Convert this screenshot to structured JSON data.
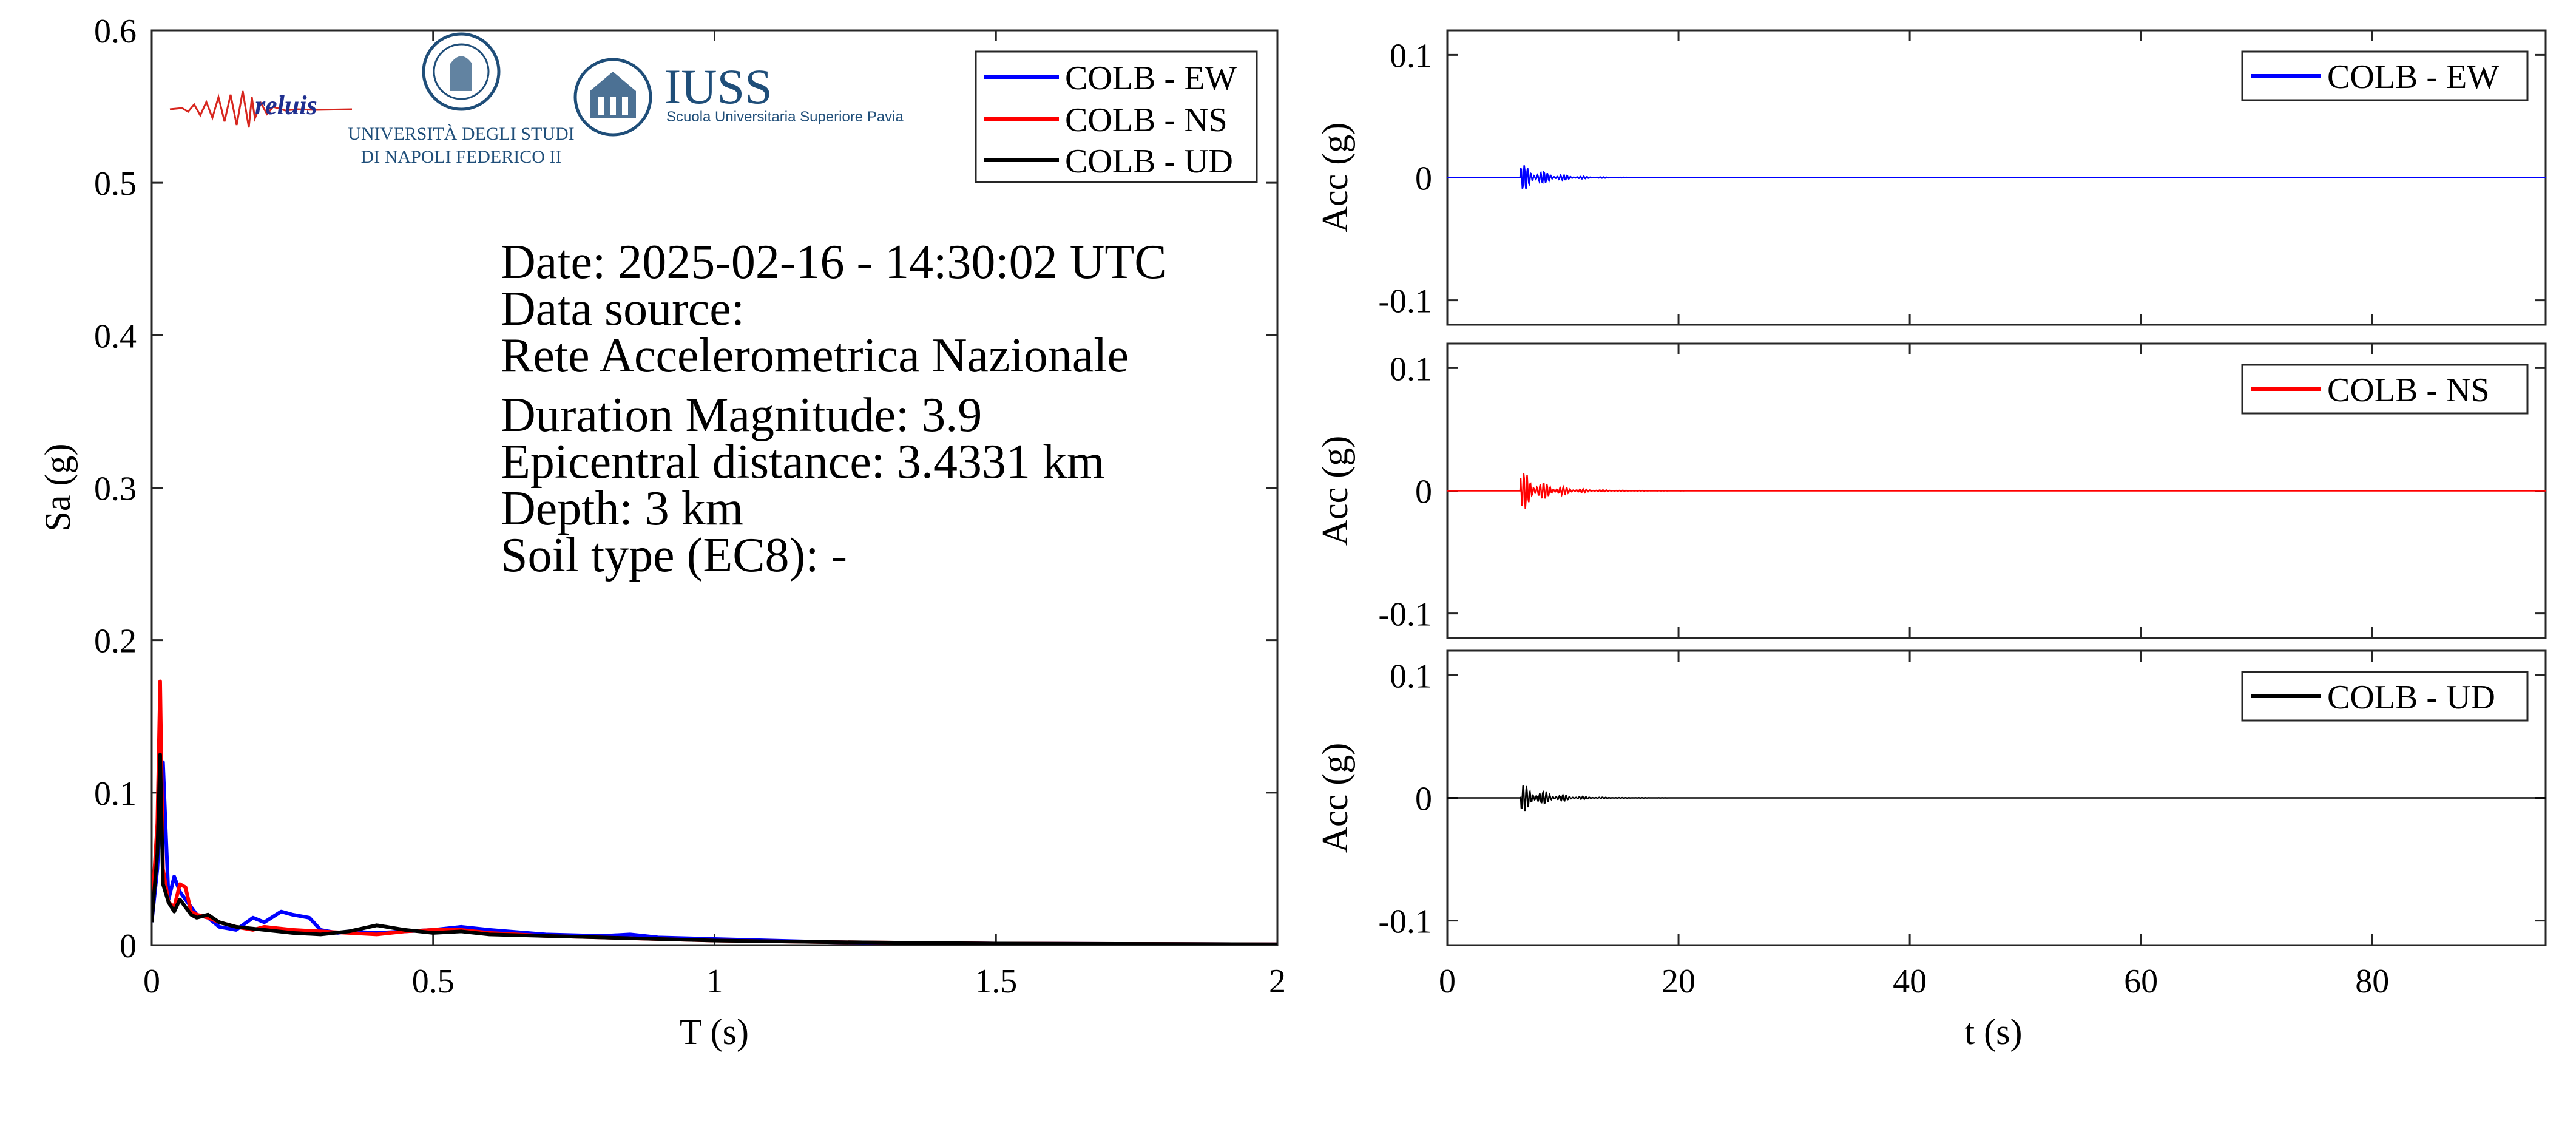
{
  "chart_data": [
    {
      "type": "line",
      "xlabel": "T (s)",
      "ylabel": "Sa (g)",
      "xlim": [
        0,
        2
      ],
      "ylim": [
        0,
        0.6
      ],
      "xticks": [
        0,
        0.5,
        1,
        1.5,
        2
      ],
      "xtick_labels": [
        "0",
        "0.5",
        "1",
        "1.5",
        "2"
      ],
      "yticks": [
        0,
        0.1,
        0.2,
        0.3,
        0.4,
        0.5,
        0.6
      ],
      "ytick_labels": [
        "0",
        "0.1",
        "0.2",
        "0.3",
        "0.4",
        "0.5",
        "0.6"
      ],
      "grid": false,
      "legend_position": "top-right",
      "series": [
        {
          "name": "COLB - EW",
          "color": "#0000ff",
          "x": [
            0,
            0.01,
            0.02,
            0.03,
            0.04,
            0.05,
            0.06,
            0.07,
            0.08,
            0.1,
            0.12,
            0.15,
            0.18,
            0.2,
            0.23,
            0.25,
            0.28,
            0.3,
            0.33,
            0.35,
            0.4,
            0.45,
            0.5,
            0.55,
            0.6,
            0.7,
            0.8,
            0.85,
            0.9,
            1.0,
            1.1,
            1.2,
            1.3,
            1.5,
            1.7,
            2.0
          ],
          "y": [
            0.015,
            0.05,
            0.12,
            0.03,
            0.045,
            0.035,
            0.03,
            0.025,
            0.02,
            0.018,
            0.012,
            0.01,
            0.018,
            0.015,
            0.022,
            0.02,
            0.018,
            0.01,
            0.008,
            0.009,
            0.008,
            0.009,
            0.01,
            0.012,
            0.01,
            0.007,
            0.006,
            0.007,
            0.005,
            0.004,
            0.003,
            0.002,
            0.0015,
            0.001,
            0.0008,
            0.0005
          ]
        },
        {
          "name": "COLB - NS",
          "color": "#ff0000",
          "x": [
            0,
            0.01,
            0.015,
            0.02,
            0.03,
            0.04,
            0.05,
            0.06,
            0.07,
            0.08,
            0.1,
            0.12,
            0.15,
            0.18,
            0.2,
            0.25,
            0.3,
            0.35,
            0.4,
            0.45,
            0.5,
            0.55,
            0.6,
            0.7,
            0.8,
            0.9,
            1.0,
            1.2,
            1.5,
            2.0
          ],
          "y": [
            0.02,
            0.08,
            0.173,
            0.05,
            0.028,
            0.025,
            0.04,
            0.038,
            0.022,
            0.02,
            0.018,
            0.015,
            0.012,
            0.01,
            0.012,
            0.01,
            0.009,
            0.008,
            0.007,
            0.009,
            0.01,
            0.01,
            0.008,
            0.006,
            0.005,
            0.004,
            0.003,
            0.002,
            0.001,
            0.0005
          ]
        },
        {
          "name": "COLB - UD",
          "color": "#000000",
          "x": [
            0,
            0.01,
            0.015,
            0.02,
            0.03,
            0.04,
            0.05,
            0.06,
            0.07,
            0.08,
            0.1,
            0.12,
            0.15,
            0.2,
            0.25,
            0.3,
            0.35,
            0.4,
            0.45,
            0.5,
            0.55,
            0.6,
            0.7,
            0.8,
            1.0,
            1.2,
            1.5,
            2.0
          ],
          "y": [
            0.015,
            0.06,
            0.125,
            0.04,
            0.028,
            0.022,
            0.03,
            0.025,
            0.02,
            0.018,
            0.02,
            0.015,
            0.012,
            0.01,
            0.008,
            0.007,
            0.009,
            0.013,
            0.01,
            0.008,
            0.009,
            0.007,
            0.006,
            0.005,
            0.003,
            0.002,
            0.001,
            0.0005
          ]
        }
      ]
    },
    {
      "type": "line",
      "xlabel": "",
      "ylabel": "Acc (g)",
      "xlim": [
        0,
        95
      ],
      "ylim": [
        -0.12,
        0.12
      ],
      "yticks": [
        -0.1,
        0,
        0.1
      ],
      "ytick_labels": [
        "-0.1",
        "0",
        "0.1"
      ],
      "legend_position": "top-right",
      "series": [
        {
          "name": "COLB - EW",
          "color": "#0000ff",
          "peak": 0.012
        }
      ]
    },
    {
      "type": "line",
      "xlabel": "",
      "ylabel": "Acc (g)",
      "xlim": [
        0,
        95
      ],
      "ylim": [
        -0.12,
        0.12
      ],
      "yticks": [
        -0.1,
        0,
        0.1
      ],
      "ytick_labels": [
        "-0.1",
        "0",
        "0.1"
      ],
      "legend_position": "top-right",
      "series": [
        {
          "name": "COLB - NS",
          "color": "#ff0000",
          "peak": 0.018
        }
      ]
    },
    {
      "type": "line",
      "xlabel": "t (s)",
      "ylabel": "Acc (g)",
      "xlim": [
        0,
        95
      ],
      "ylim": [
        -0.12,
        0.12
      ],
      "xticks": [
        0,
        20,
        40,
        60,
        80
      ],
      "xtick_labels": [
        "0",
        "20",
        "40",
        "60",
        "80"
      ],
      "yticks": [
        -0.1,
        0,
        0.1
      ],
      "ytick_labels": [
        "-0.1",
        "0",
        "0.1"
      ],
      "legend_position": "top-right",
      "series": [
        {
          "name": "COLB - UD",
          "color": "#000000",
          "peak": 0.013
        }
      ]
    }
  ],
  "info": [
    "Date: 2025-02-16 - 14:30:02 UTC",
    "Data source:",
    "Rete Accelerometrica Nazionale",
    "Duration Magnitude: 3.9",
    "Epicentral distance: 3.4331 km",
    "Depth: 3 km",
    "Soil type (EC8): -"
  ],
  "logos": {
    "reluis": "reluis",
    "unina_line1": "UNIVERSITÀ DEGLI STUDI",
    "unina_line2": "DI NAPOLI FEDERICO II",
    "iuss": "IUSS",
    "iuss_sub": "Scuola Universitaria Superiore Pavia",
    "blue": "#1f4e79"
  }
}
